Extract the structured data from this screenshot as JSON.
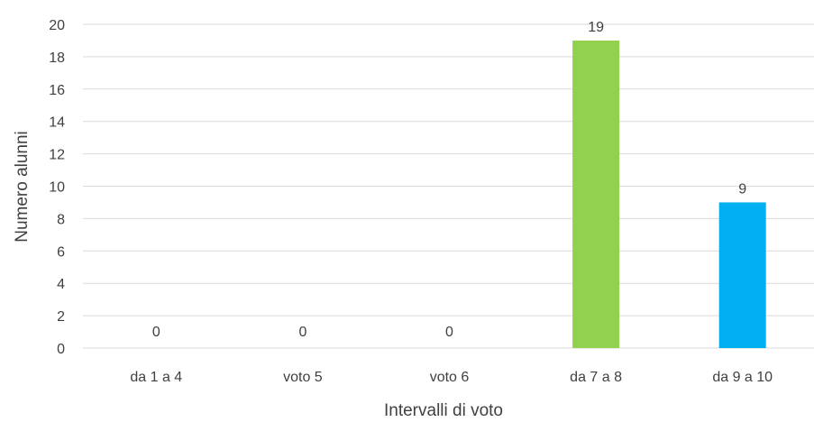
{
  "chart_data": {
    "type": "bar",
    "title": "",
    "xlabel": "Intervalli di voto",
    "ylabel": "Numero alunni",
    "categories": [
      "da 1 a 4",
      "voto 5",
      "voto 6",
      "da 7 a 8",
      "da 9 a 10"
    ],
    "values": [
      0,
      0,
      0,
      19,
      9
    ],
    "data_labels": [
      "0",
      "0",
      "0",
      "19",
      "9"
    ],
    "bar_colors": [
      "#92d050",
      "#92d050",
      "#92d050",
      "#92d050",
      "#00b0f0"
    ],
    "ylim": [
      0,
      20
    ],
    "yticks": [
      0,
      2,
      4,
      6,
      8,
      10,
      12,
      14,
      16,
      18,
      20
    ],
    "ytick_labels": [
      "0",
      "2",
      "4",
      "6",
      "8",
      "10",
      "12",
      "14",
      "16",
      "18",
      "20"
    ],
    "grid": true,
    "legend": "none"
  }
}
